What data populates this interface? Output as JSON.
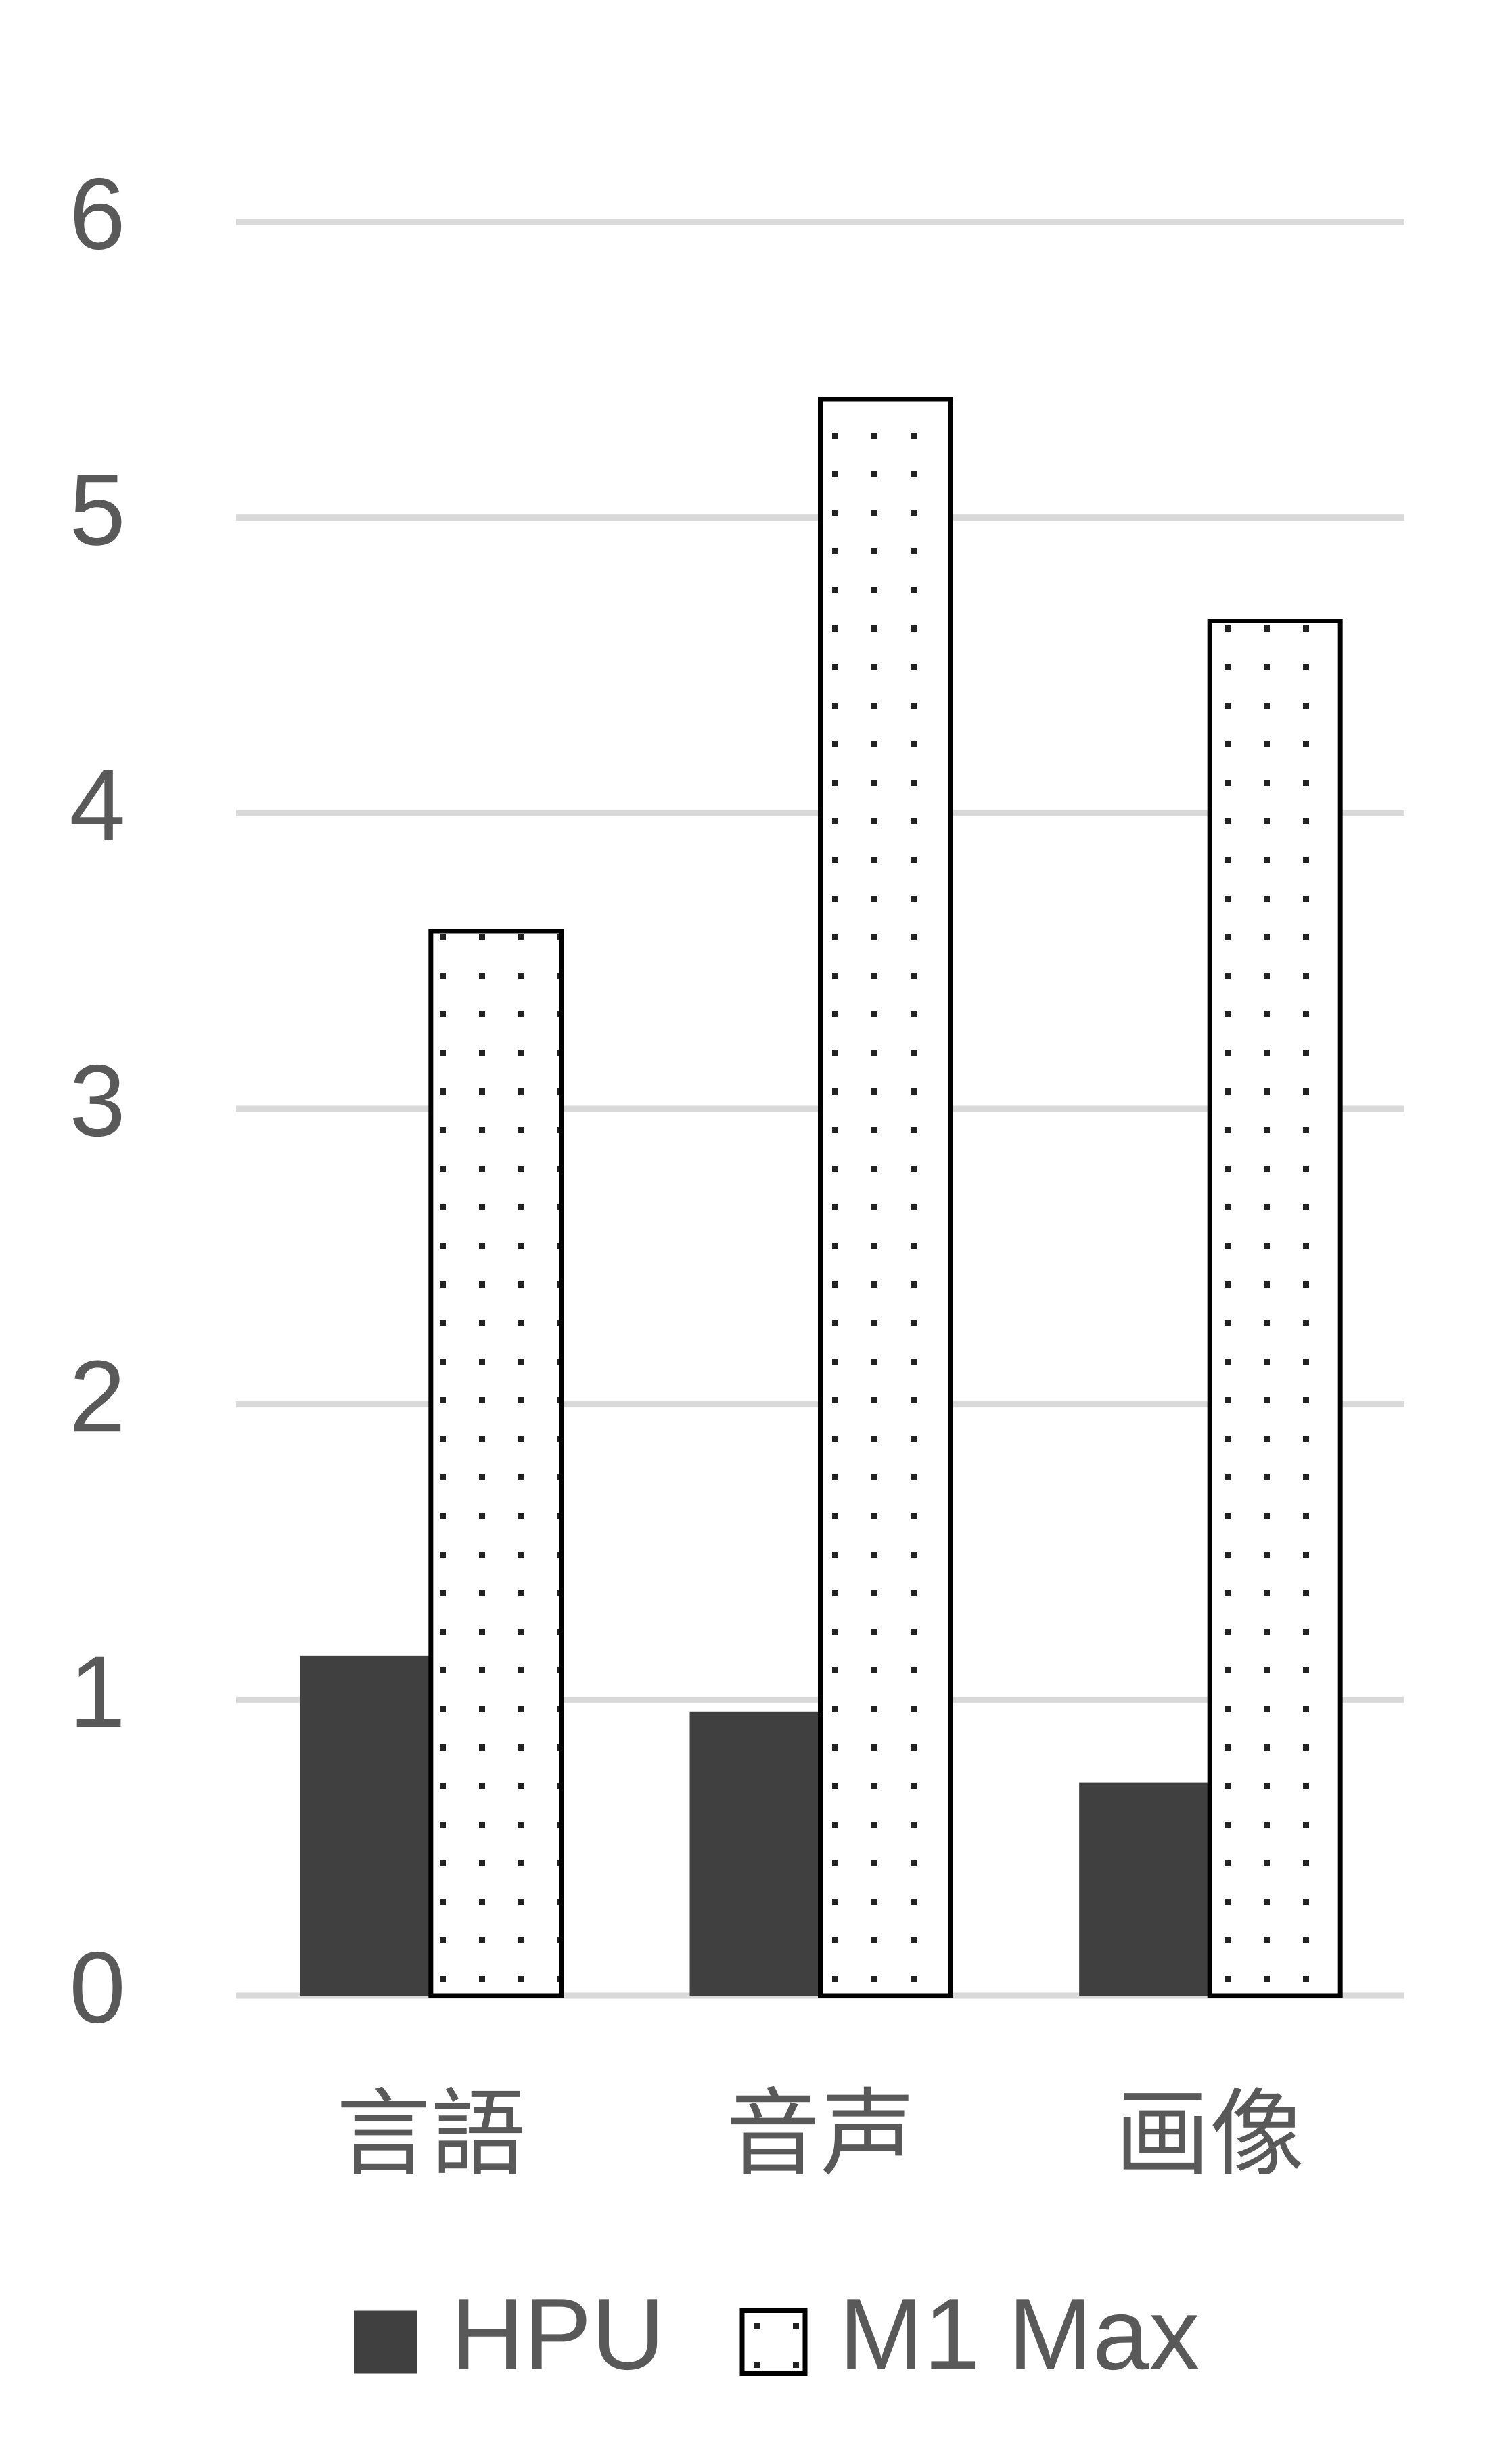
{
  "chart_data": {
    "type": "bar",
    "categories": [
      "言語",
      "音声",
      "画像"
    ],
    "series": [
      {
        "name": "HPU",
        "color": "#404040",
        "values": [
          1.15,
          0.96,
          0.72
        ]
      },
      {
        "name": "M1 Max",
        "color": "#ffffff",
        "pattern": "dots",
        "values": [
          3.6,
          5.4,
          4.65
        ]
      }
    ],
    "ylim": [
      0,
      6
    ],
    "yticks": [
      0,
      1,
      2,
      3,
      4,
      5,
      6
    ],
    "grid": true,
    "legend": "bottom"
  }
}
